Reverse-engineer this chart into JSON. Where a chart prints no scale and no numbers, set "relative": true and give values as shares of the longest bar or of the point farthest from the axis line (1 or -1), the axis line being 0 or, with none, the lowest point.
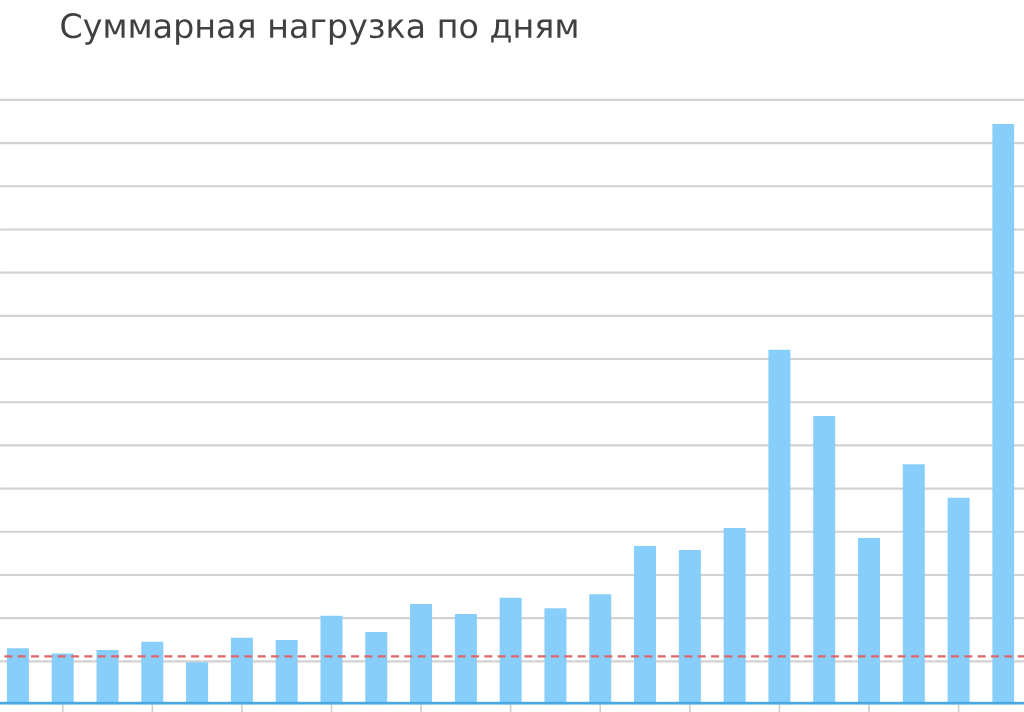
{
  "chart_data": {
    "type": "bar",
    "title": "Суммарная нагрузка по дням",
    "relative": true,
    "grid": "y",
    "color": "#87cefa",
    "categories": [
      null,
      null,
      null,
      null,
      null,
      null,
      null,
      null,
      null,
      null,
      null,
      null,
      null,
      null,
      null,
      null,
      null,
      null,
      null,
      null,
      null,
      null,
      null
    ],
    "values": [
      0.097,
      0.088,
      0.094,
      0.108,
      0.073,
      0.115,
      0.111,
      0.153,
      0.125,
      0.173,
      0.156,
      0.184,
      0.166,
      0.19,
      0.273,
      0.266,
      0.304,
      0.611,
      0.497,
      0.287,
      0.414,
      0.356,
      1
    ],
    "ref_lines": [
      {
        "axis": "y",
        "value": 0.083,
        "color": "#e06666",
        "line_style": "dashed"
      }
    ]
  }
}
